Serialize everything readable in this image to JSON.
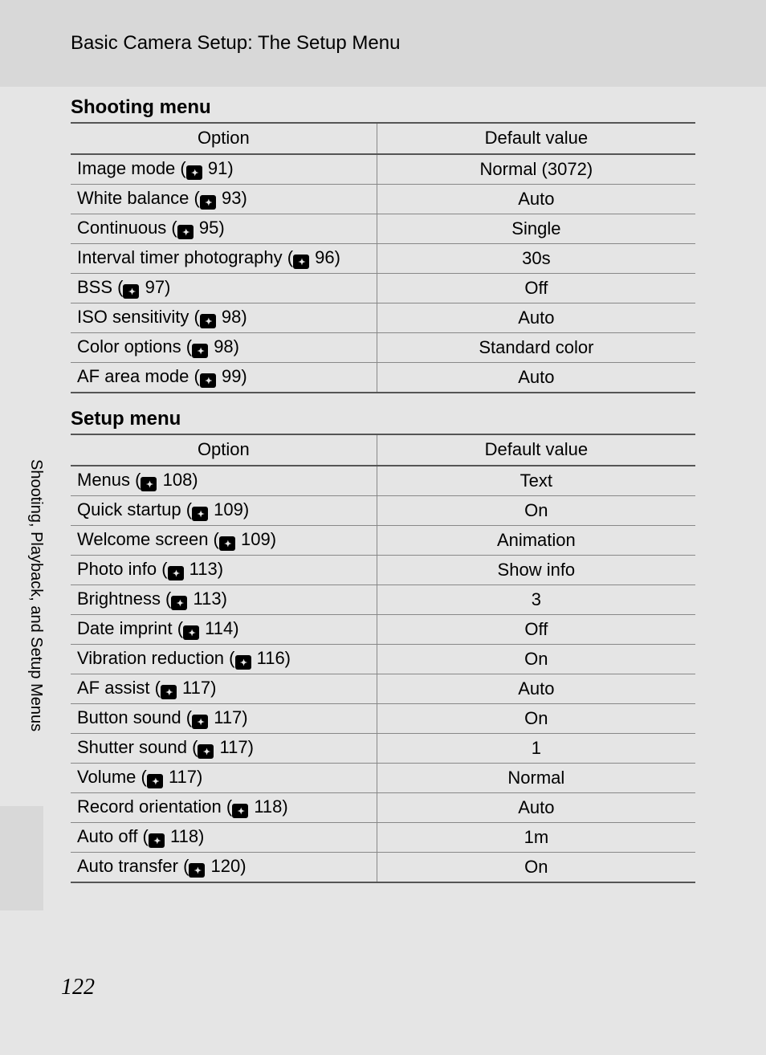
{
  "header": {
    "title": "Basic Camera Setup: The Setup Menu"
  },
  "sidebar": {
    "label": "Shooting, Playback, and Setup Menus"
  },
  "page_number": "122",
  "tables": {
    "shooting": {
      "heading": "Shooting menu",
      "columns": {
        "option": "Option",
        "default": "Default value"
      },
      "rows": [
        {
          "label": "Image mode",
          "page": "91",
          "value": "Normal (3072)"
        },
        {
          "label": "White balance",
          "page": "93",
          "value": "Auto"
        },
        {
          "label": "Continuous",
          "page": "95",
          "value": "Single"
        },
        {
          "label": "Interval timer photography",
          "page": "96",
          "value": "30s"
        },
        {
          "label": "BSS",
          "page": "97",
          "value": "Off"
        },
        {
          "label": "ISO sensitivity",
          "page": "98",
          "value": "Auto"
        },
        {
          "label": "Color options",
          "page": "98",
          "value": "Standard color"
        },
        {
          "label": "AF area mode",
          "page": "99",
          "value": "Auto"
        }
      ]
    },
    "setup": {
      "heading": "Setup menu",
      "columns": {
        "option": "Option",
        "default": "Default value"
      },
      "rows": [
        {
          "label": "Menus",
          "page": "108",
          "value": "Text"
        },
        {
          "label": "Quick startup",
          "page": "109",
          "value": "On"
        },
        {
          "label": "Welcome screen",
          "page": "109",
          "value": "Animation"
        },
        {
          "label": "Photo info",
          "page": "113",
          "value": "Show info"
        },
        {
          "label": "Brightness",
          "page": "113",
          "value": "3"
        },
        {
          "label": "Date imprint",
          "page": "114",
          "value": "Off"
        },
        {
          "label": "Vibration reduction",
          "page": "116",
          "value": "On"
        },
        {
          "label": "AF assist",
          "page": "117",
          "value": "Auto"
        },
        {
          "label": "Button sound",
          "page": "117",
          "value": "On"
        },
        {
          "label": "Shutter sound",
          "page": "117",
          "value": "1"
        },
        {
          "label": "Volume",
          "page": "117",
          "value": "Normal"
        },
        {
          "label": "Record orientation",
          "page": "118",
          "value": "Auto"
        },
        {
          "label": "Auto off",
          "page": "118",
          "value": "1m"
        },
        {
          "label": "Auto transfer",
          "page": "120",
          "value": "On"
        }
      ]
    }
  }
}
